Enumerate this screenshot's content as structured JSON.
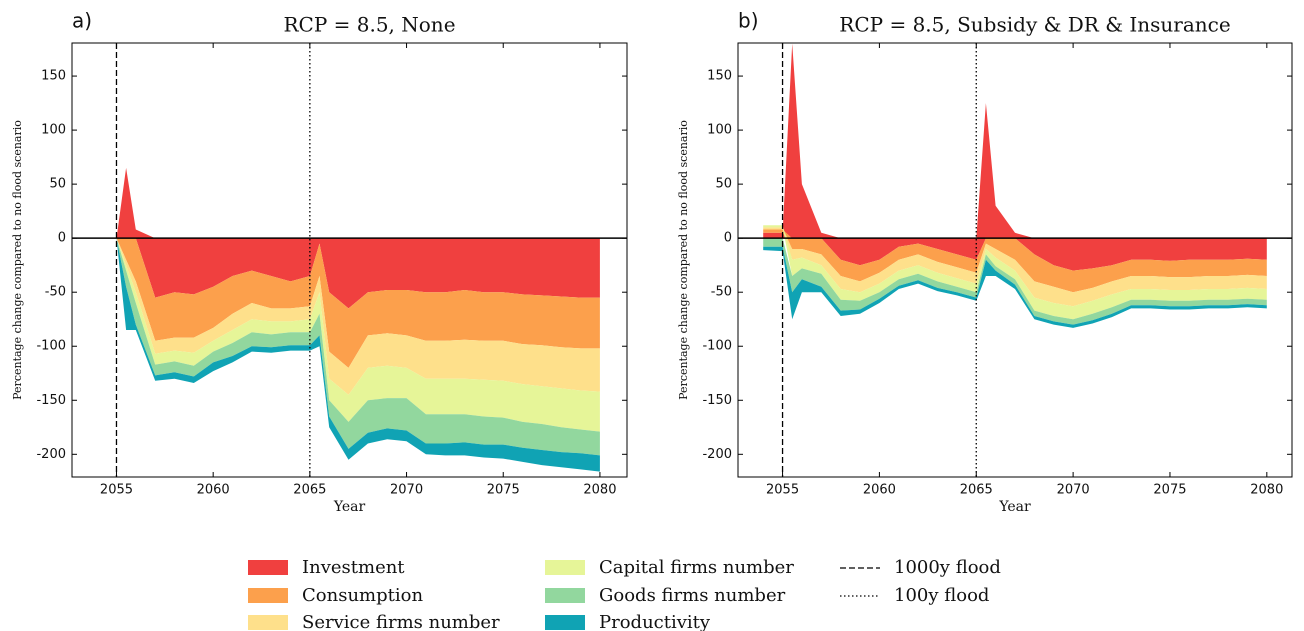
{
  "chart_data": [
    {
      "type": "stacked_area",
      "panel_label": "a)",
      "title": "RCP = 8.5, None",
      "xlabel": "Year",
      "ylabel": "Percentage change compared to no flood scenario",
      "x": [
        2055,
        2055.5,
        2056,
        2057,
        2058,
        2059,
        2060,
        2061,
        2062,
        2063,
        2064,
        2065,
        2065.5,
        2066,
        2067,
        2068,
        2069,
        2070,
        2071,
        2072,
        2073,
        2074,
        2075,
        2076,
        2077,
        2078,
        2079,
        2080
      ],
      "series": [
        {
          "name": "Investment",
          "color": "#f0403f",
          "values": [
            0,
            65,
            8,
            -55,
            -50,
            -52,
            -45,
            -35,
            -30,
            -35,
            -40,
            -35,
            -5,
            -50,
            -65,
            -50,
            -48,
            -48,
            -50,
            -50,
            -48,
            -50,
            -50,
            -52,
            -53,
            -54,
            -55,
            -55
          ]
        },
        {
          "name": "Consumption",
          "color": "#fca04c",
          "values": [
            0,
            -20,
            -40,
            -40,
            -42,
            -40,
            -38,
            -35,
            -30,
            -30,
            -25,
            -28,
            -30,
            -55,
            -55,
            -40,
            -40,
            -42,
            -45,
            -45,
            -46,
            -45,
            -45,
            -46,
            -46,
            -47,
            -47,
            -47
          ]
        },
        {
          "name": "Service firms number",
          "color": "#fee08b",
          "values": [
            0,
            -5,
            -10,
            -12,
            -12,
            -14,
            -12,
            -15,
            -15,
            -12,
            -12,
            -12,
            -15,
            -25,
            -25,
            -30,
            -30,
            -30,
            -35,
            -35,
            -36,
            -36,
            -37,
            -37,
            -38,
            -38,
            -39,
            -40
          ]
        },
        {
          "name": "Capital firms number",
          "color": "#e6f598",
          "values": [
            0,
            -5,
            -10,
            -10,
            -10,
            -12,
            -10,
            -12,
            -12,
            -12,
            -10,
            -12,
            -20,
            -20,
            -25,
            -30,
            -30,
            -28,
            -33,
            -33,
            -33,
            -34,
            -34,
            -35,
            -35,
            -36,
            -36,
            -37
          ]
        },
        {
          "name": "Goods firms number",
          "color": "#92d79e",
          "values": [
            0,
            -15,
            -20,
            -10,
            -10,
            -10,
            -10,
            -12,
            -13,
            -12,
            -12,
            -12,
            -20,
            -15,
            -25,
            -30,
            -28,
            -30,
            -27,
            -27,
            -26,
            -26,
            -25,
            -24,
            -24,
            -23,
            -22,
            -22
          ]
        },
        {
          "name": "Productivity",
          "color": "#10a3b4",
          "values": [
            0,
            -40,
            -5,
            -5,
            -6,
            -6,
            -8,
            -6,
            -5,
            -5,
            -5,
            -5,
            -10,
            -10,
            -10,
            -10,
            -10,
            -10,
            -10,
            -11,
            -12,
            -12,
            -13,
            -13,
            -14,
            -14,
            -15,
            -15
          ]
        }
      ],
      "xlim": [
        2052.7,
        2081.4
      ],
      "xticks": [
        2055,
        2060,
        2065,
        2070,
        2075,
        2080
      ],
      "ylim": [
        -221,
        180.6
      ],
      "yticks": [
        -200,
        -150,
        -100,
        -50,
        0,
        50,
        100,
        150
      ],
      "markers": [
        {
          "x": 2055,
          "label": "1000y flood",
          "style": "dashed"
        },
        {
          "x": 2065,
          "label": "100y flood",
          "style": "dotted"
        }
      ]
    },
    {
      "type": "stacked_area",
      "panel_label": "b)",
      "title": "RCP = 8.5, Subsidy & DR & Insurance",
      "xlabel": "Year",
      "ylabel": "Percentage change compared to no flood scenario",
      "x": [
        2054,
        2055,
        2055.5,
        2056,
        2057,
        2058,
        2059,
        2060,
        2061,
        2062,
        2063,
        2064,
        2065,
        2065.5,
        2066,
        2067,
        2068,
        2069,
        2070,
        2071,
        2072,
        2073,
        2074,
        2075,
        2076,
        2077,
        2078,
        2079,
        2080
      ],
      "series": [
        {
          "color": "#f0403f",
          "values": [
            5,
            5,
            180,
            50,
            5,
            -20,
            -25,
            -20,
            -8,
            -5,
            -10,
            -15,
            -20,
            125,
            30,
            5,
            -15,
            -25,
            -30,
            -28,
            -25,
            -20,
            -20,
            -21,
            -20,
            -20,
            -20,
            -19,
            -20
          ]
        },
        {
          "color": "#fca04c",
          "values": [
            3,
            3,
            -10,
            -10,
            -15,
            -15,
            -15,
            -12,
            -12,
            -10,
            -12,
            -12,
            -12,
            -5,
            -10,
            -20,
            -25,
            -20,
            -20,
            -18,
            -15,
            -15,
            -15,
            -15,
            -16,
            -15,
            -15,
            -15,
            -15
          ]
        },
        {
          "color": "#fee08b",
          "values": [
            2,
            2,
            -10,
            -8,
            -10,
            -12,
            -10,
            -10,
            -10,
            -10,
            -10,
            -10,
            -10,
            -5,
            -8,
            -10,
            -15,
            -15,
            -13,
            -12,
            -12,
            -12,
            -12,
            -12,
            -12,
            -12,
            -12,
            -12,
            -12
          ]
        },
        {
          "color": "#e6f598",
          "values": [
            2,
            2,
            -15,
            -10,
            -8,
            -10,
            -8,
            -8,
            -8,
            -8,
            -8,
            -8,
            -8,
            -5,
            -8,
            -8,
            -12,
            -12,
            -12,
            -12,
            -12,
            -10,
            -10,
            -10,
            -10,
            -10,
            -10,
            -10,
            -10
          ]
        },
        {
          "color": "#92d79e",
          "values": [
            -8,
            -8,
            -15,
            -10,
            -12,
            -10,
            -8,
            -6,
            -6,
            -6,
            -6,
            -5,
            -5,
            -5,
            -4,
            -5,
            -5,
            -5,
            -5,
            -6,
            -6,
            -5,
            -5,
            -5,
            -5,
            -5,
            -5,
            -5,
            -5
          ]
        },
        {
          "color": "#10a3b4",
          "values": [
            -3,
            -4,
            -25,
            -12,
            -5,
            -5,
            -4,
            -4,
            -3,
            -3,
            -3,
            -3,
            -3,
            -15,
            -5,
            -4,
            -3,
            -3,
            -3,
            -3,
            -3,
            -3,
            -3,
            -3,
            -3,
            -3,
            -3,
            -3,
            -3
          ]
        }
      ],
      "xlim": [
        2052.7,
        2081.3
      ],
      "xticks": [
        2055,
        2060,
        2065,
        2070,
        2075,
        2080
      ],
      "ylim": [
        -221,
        180.6
      ],
      "yticks": [
        -200,
        -150,
        -100,
        -50,
        0,
        50,
        100,
        150
      ],
      "markers": [
        {
          "x": 2055,
          "style": "dashed"
        },
        {
          "x": 2065,
          "style": "dotted"
        }
      ]
    }
  ]
}
